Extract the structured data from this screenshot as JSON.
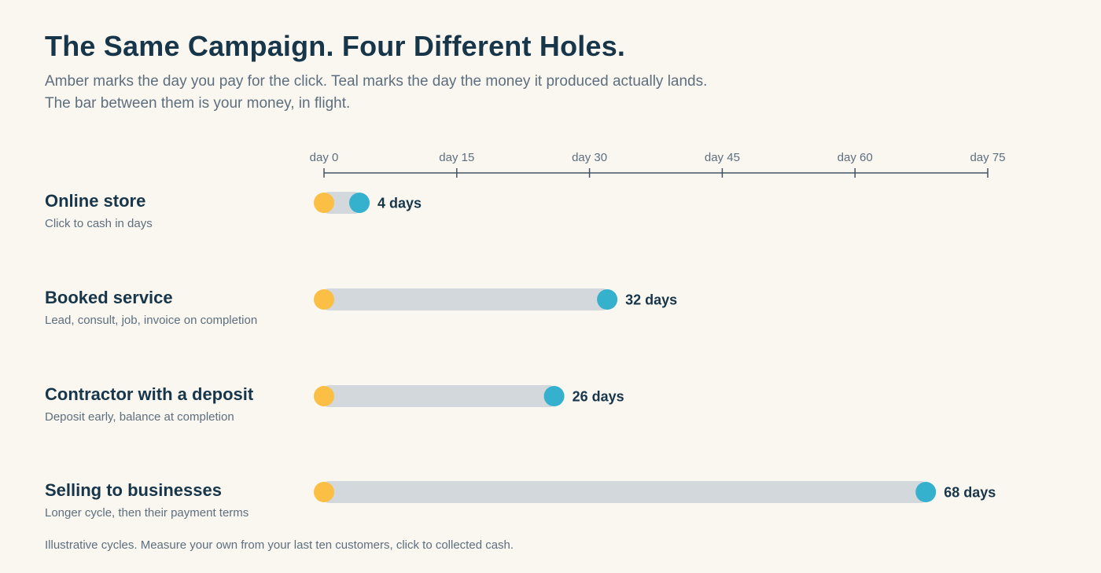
{
  "header": {
    "title": "The Same Campaign. Four Different Holes.",
    "subtitle_line1": "Amber marks the day you pay for the click. Teal marks the day the money it produced actually lands.",
    "subtitle_line2": "The bar between them is your money, in flight."
  },
  "colors": {
    "amber": "#fbbf45",
    "teal": "#35b1cd",
    "bar": "#d3d8dc",
    "axis": "#435363"
  },
  "chart_data": {
    "type": "range-bar",
    "xlim": [
      0,
      75
    ],
    "ticks": [
      {
        "value": 0,
        "label": "day 0"
      },
      {
        "value": 15,
        "label": "day 15"
      },
      {
        "value": 30,
        "label": "day 30"
      },
      {
        "value": 45,
        "label": "day 45"
      },
      {
        "value": 60,
        "label": "day 60"
      },
      {
        "value": 75,
        "label": "day 75"
      }
    ],
    "rows": [
      {
        "name": "Online store",
        "description": "Click to cash in days",
        "start": 0,
        "end": 4,
        "label": "4 days"
      },
      {
        "name": "Booked service",
        "description": "Lead, consult, job, invoice on completion",
        "start": 0,
        "end": 32,
        "label": "32 days"
      },
      {
        "name": "Contractor with a deposit",
        "description": "Deposit early, balance at completion",
        "start": 0,
        "end": 26,
        "label": "26 days"
      },
      {
        "name": "Selling to businesses",
        "description": "Longer cycle, then their payment terms",
        "start": 0,
        "end": 68,
        "label": "68 days"
      }
    ]
  },
  "footnote": "Illustrative cycles. Measure your own from your last ten customers, click to collected cash."
}
